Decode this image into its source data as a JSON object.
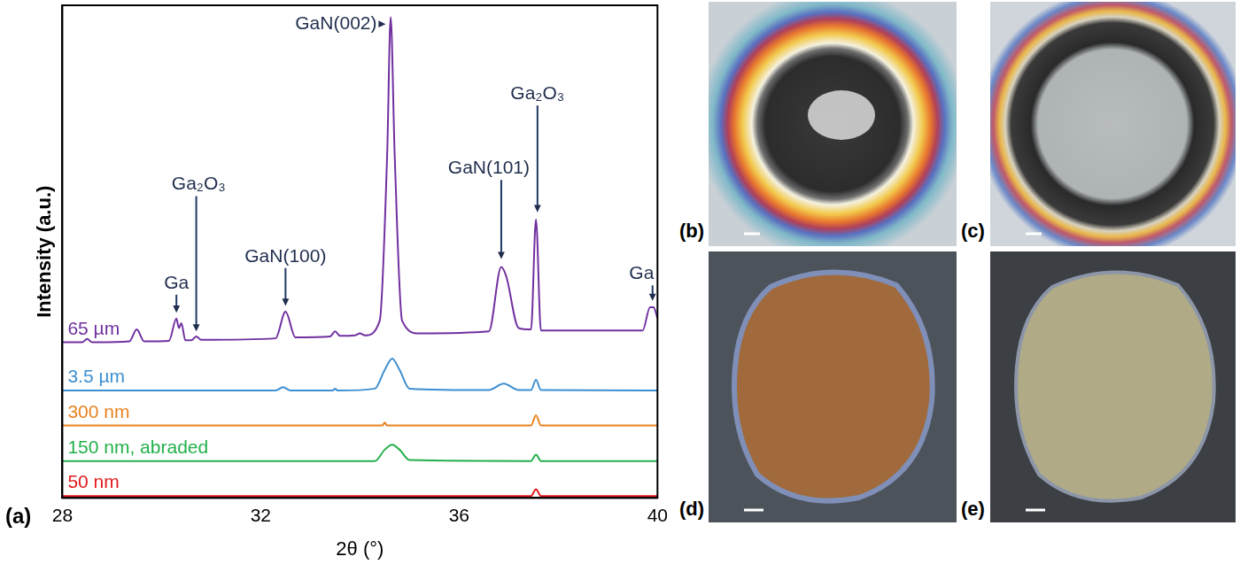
{
  "chart_data": {
    "type": "line",
    "x_label": "2θ (°)",
    "y_label": "Intensity (a.u.)",
    "panel_label": "(a)",
    "xlim": [
      28,
      40
    ],
    "xticks": [
      28,
      32,
      36,
      40
    ],
    "ylim": [
      0,
      100
    ],
    "tick_labels": "x",
    "grid": false,
    "series": [
      {
        "name": "65 µm",
        "color": "#7030a0",
        "x": [
          28,
          28.4,
          28.5,
          28.6,
          28.7,
          29.35,
          29.5,
          29.65,
          30.15,
          30.3,
          30.35,
          30.4,
          30.48,
          30.6,
          30.7,
          30.8,
          32.3,
          32.5,
          32.7,
          33.4,
          33.5,
          33.6,
          33.9,
          34.0,
          34.1,
          34.4,
          34.55,
          34.62,
          34.7,
          34.85,
          35.2,
          36.6,
          36.85,
          36.95,
          37.2,
          37.45,
          37.55,
          37.65,
          39.7,
          39.85,
          39.92,
          40
        ],
        "values": [
          31.6,
          31.6,
          32.3,
          31.6,
          31.6,
          31.8,
          34.2,
          31.8,
          31.9,
          36.4,
          34.5,
          35.5,
          32.0,
          32.0,
          32.8,
          32.1,
          32.4,
          37.8,
          32.6,
          32.8,
          33.8,
          32.9,
          33.0,
          33.4,
          33.0,
          36.0,
          70.0,
          97.6,
          70.0,
          36.0,
          33.4,
          33.8,
          46.9,
          45.0,
          34.5,
          34.2,
          56.5,
          34.0,
          34.0,
          38.7,
          38.7,
          36.5
        ]
      },
      {
        "name": "3.5 µm",
        "color": "#3d8fd1",
        "x": [
          28,
          32.3,
          32.45,
          32.6,
          33.45,
          33.5,
          33.55,
          34.3,
          34.5,
          34.65,
          34.8,
          35.0,
          36.6,
          36.9,
          37.2,
          37.45,
          37.55,
          37.65,
          40
        ],
        "values": [
          21.8,
          21.8,
          22.5,
          21.8,
          21.8,
          22.2,
          21.8,
          22.2,
          26.0,
          28.3,
          26.0,
          22.2,
          21.9,
          23.2,
          21.9,
          21.9,
          24.0,
          21.9,
          21.8
        ]
      },
      {
        "name": "300 nm",
        "color": "#e8821e",
        "x": [
          28,
          34.45,
          34.5,
          34.55,
          37.45,
          37.55,
          37.65,
          40
        ],
        "values": [
          14.7,
          14.7,
          15.3,
          14.7,
          14.7,
          16.8,
          14.7,
          14.7
        ]
      },
      {
        "name": "150 nm, abraded",
        "color": "#22b04a",
        "x": [
          28,
          34.3,
          34.5,
          34.65,
          34.8,
          35.0,
          37.45,
          37.55,
          37.65,
          40
        ],
        "values": [
          7.5,
          7.5,
          9.8,
          10.8,
          9.8,
          7.7,
          7.5,
          8.8,
          7.5,
          7.5
        ]
      },
      {
        "name": "50 nm",
        "color": "#e31a1c",
        "x": [
          28,
          37.45,
          37.55,
          37.65,
          40
        ],
        "values": [
          0.4,
          0.4,
          1.8,
          0.4,
          0.4
        ]
      }
    ],
    "annotations": [
      {
        "text": "GaN(002)",
        "x": 34.52,
        "y": 96.2,
        "label_x": 33.9,
        "label_y": 96.2
      },
      {
        "text": "Ga",
        "x": 30.3,
        "y": 37.6,
        "label_x": 30.3,
        "label_y": 43.6
      },
      {
        "text": "Ga₂O₃",
        "x": 30.7,
        "y": 33.8,
        "label_x": 30.75,
        "label_y": 63.6
      },
      {
        "text": "GaN(100)",
        "x": 32.5,
        "y": 39.0,
        "label_x": 32.5,
        "label_y": 49.0
      },
      {
        "text": "GaN(101)",
        "x": 36.85,
        "y": 48.5,
        "label_x": 36.6,
        "label_y": 66.9
      },
      {
        "text": "Ga₂O₃",
        "x": 37.58,
        "y": 58.0,
        "label_x": 37.58,
        "label_y": 82.0
      },
      {
        "text": "Ga",
        "x": 39.9,
        "y": 40.0,
        "label_x": 39.75,
        "label_y": 45.5
      }
    ]
  },
  "image_panels": [
    {
      "label": "(b)"
    },
    {
      "label": "(c)"
    },
    {
      "label": "(d)"
    },
    {
      "label": "(e)"
    }
  ]
}
